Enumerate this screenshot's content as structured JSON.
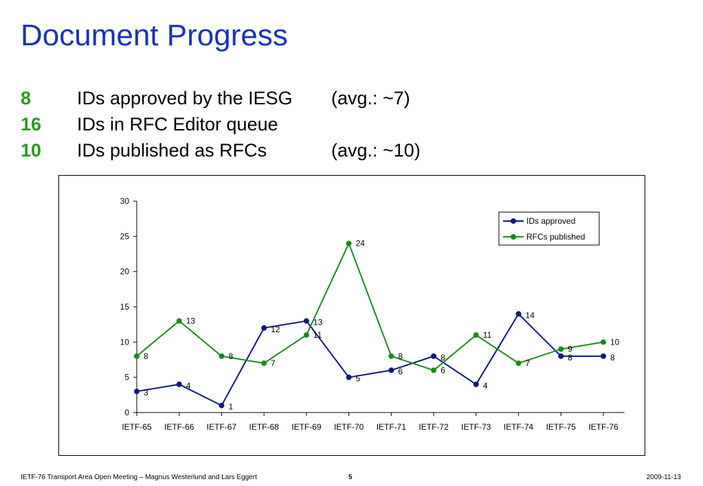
{
  "slide": {
    "title": "Document Progress",
    "stats": [
      {
        "value": "8",
        "text": "IDs approved by the IESG",
        "avg": "(avg.: ~7)"
      },
      {
        "value": "16",
        "text": "IDs in RFC Editor queue",
        "avg": ""
      },
      {
        "value": "10",
        "text": "IDs published as RFCs",
        "avg": "(avg.: ~10)"
      }
    ],
    "footer": {
      "left": "IETF-76 Transport Area Open Meeting – Magnus Westerlund and Lars Eggert",
      "page": "5",
      "date": "2009-11-13"
    }
  },
  "chart_data": {
    "type": "line",
    "title": "",
    "xlabel": "",
    "ylabel": "",
    "categories": [
      "IETF-65",
      "IETF-66",
      "IETF-67",
      "IETF-68",
      "IETF-69",
      "IETF-70",
      "IETF-71",
      "IETF-72",
      "IETF-73",
      "IETF-74",
      "IETF-75",
      "IETF-76"
    ],
    "ylim": [
      0,
      30
    ],
    "yticks": [
      0,
      5,
      10,
      15,
      20,
      25,
      30
    ],
    "grid": false,
    "legend_position": "top-right",
    "series": [
      {
        "name": "IDs approved",
        "color": "#0a1a7a",
        "values": [
          3,
          4,
          1,
          12,
          13,
          5,
          6,
          8,
          4,
          14,
          8,
          8
        ]
      },
      {
        "name": "RFCs published",
        "color": "#1b8a1b",
        "values": [
          8,
          13,
          8,
          7,
          11,
          24,
          8,
          6,
          11,
          7,
          9,
          10
        ]
      }
    ]
  }
}
